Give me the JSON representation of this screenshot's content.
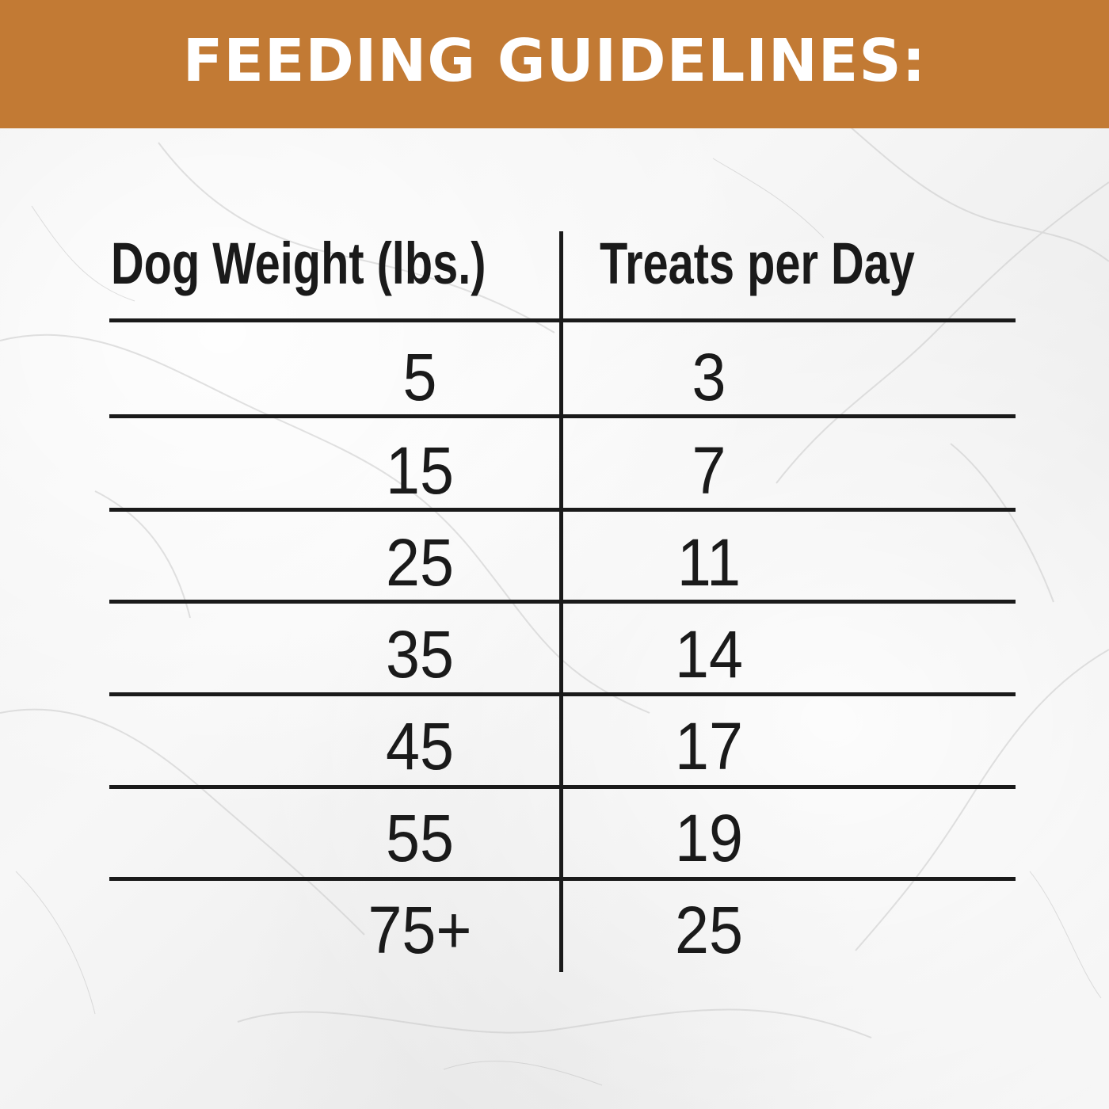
{
  "header": {
    "title": "FEEDING GUIDELINES:"
  },
  "table": {
    "columns": [
      "Dog Weight (lbs.)",
      "Treats per Day"
    ],
    "rows": [
      [
        "5",
        "3"
      ],
      [
        "15",
        "7"
      ],
      [
        "25",
        "11"
      ],
      [
        "35",
        "14"
      ],
      [
        "45",
        "17"
      ],
      [
        "55",
        "19"
      ],
      [
        "75+",
        "25"
      ]
    ]
  },
  "colors": {
    "header_band": "#c27a34",
    "text": "#1a1a1a",
    "header_text": "#ffffff",
    "background": "#f2f2f2"
  }
}
